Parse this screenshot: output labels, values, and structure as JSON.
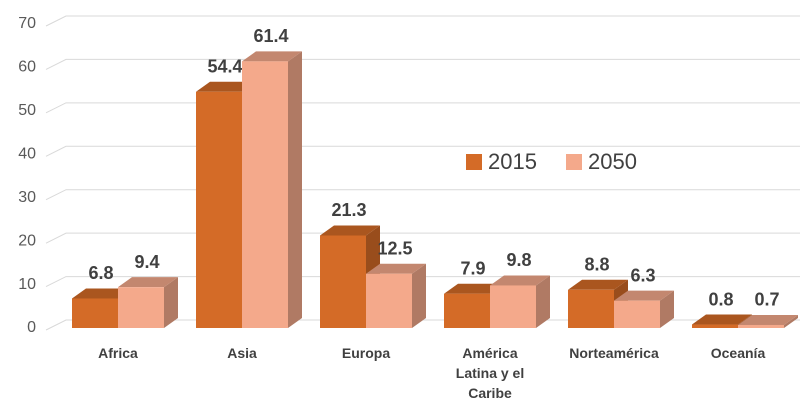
{
  "chart_data": {
    "type": "bar3d",
    "categories": [
      "Africa",
      "Asia",
      "Europa",
      "América Latina y el Caribe",
      "Norteamérica",
      "Oceanía"
    ],
    "series": [
      {
        "name": "2015",
        "color": "#d46b27",
        "values": [
          6.8,
          54.4,
          21.3,
          7.9,
          8.8,
          0.8
        ]
      },
      {
        "name": "2050",
        "color": "#f4a98b",
        "values": [
          9.4,
          61.4,
          12.5,
          9.8,
          6.3,
          0.7
        ]
      }
    ],
    "ylim": [
      0,
      70
    ],
    "yticks": [
      0,
      10,
      20,
      30,
      40,
      50,
      60,
      70
    ],
    "grid": true,
    "legend": "center"
  }
}
